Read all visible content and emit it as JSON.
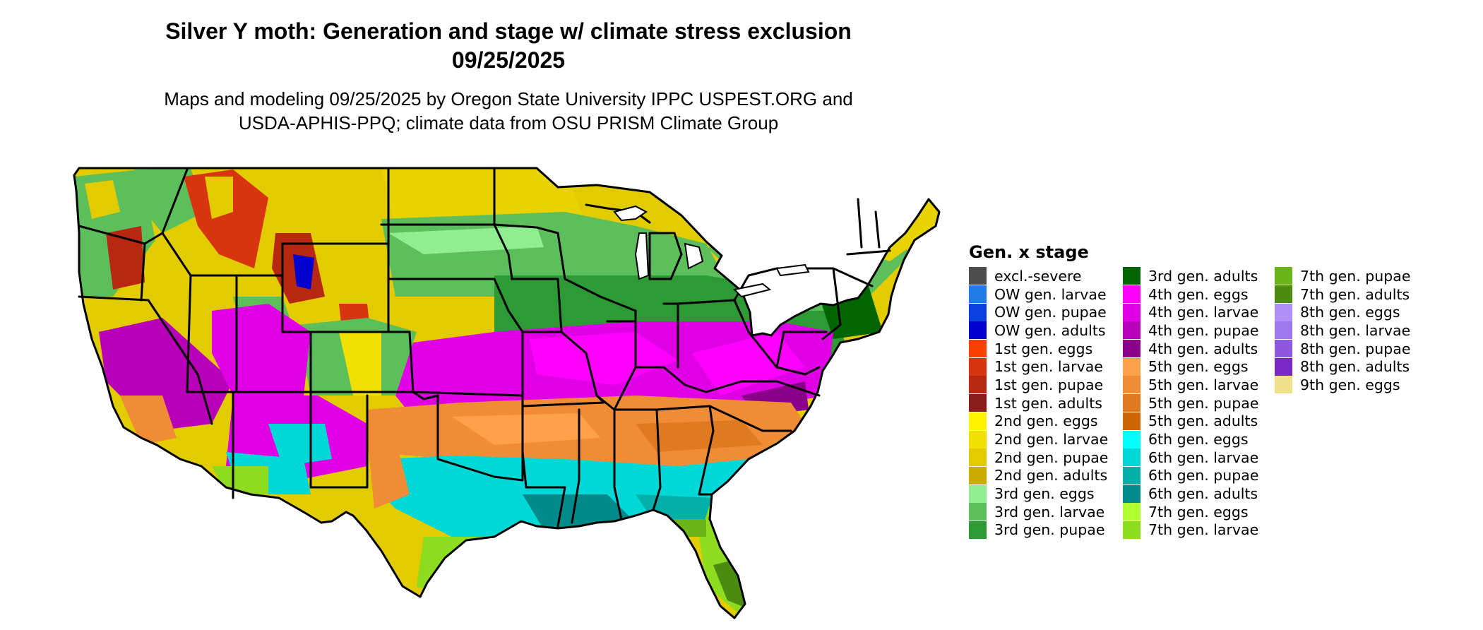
{
  "title": "Silver Y moth: Generation and stage w/ climate stress exclusion",
  "date": "09/25/2025",
  "subtitle_line1": "Maps and modeling 09/25/2025 by Oregon State University IPPC USPEST.ORG and",
  "subtitle_line2": "USDA-APHIS-PPQ; climate data from OSU PRISM Climate Group",
  "map": {
    "region": "Contiguous United States",
    "background_color": "#e8c400",
    "outline_color": "#000000"
  },
  "legend": {
    "title": "Gen. x stage",
    "columns": [
      [
        {
          "label": "excl.-severe",
          "color": "#4d4d4d"
        },
        {
          "label": "OW gen. larvae",
          "color": "#1e7be8"
        },
        {
          "label": "OW gen. pupae",
          "color": "#0a40e0"
        },
        {
          "label": "OW gen. adults",
          "color": "#0000d0"
        },
        {
          "label": "1st gen. eggs",
          "color": "#f84000"
        },
        {
          "label": "1st gen. larvae",
          "color": "#d83410"
        },
        {
          "label": "1st gen. pupae",
          "color": "#b82810"
        },
        {
          "label": "1st gen. adults",
          "color": "#8b1c1c"
        },
        {
          "label": "2nd gen. eggs",
          "color": "#fff200"
        },
        {
          "label": "2nd gen. larvae",
          "color": "#f2e000"
        },
        {
          "label": "2nd gen. pupae",
          "color": "#e2cc00"
        },
        {
          "label": "2nd gen. adults",
          "color": "#ccac00"
        },
        {
          "label": "3rd gen. eggs",
          "color": "#90ee90"
        },
        {
          "label": "3rd gen. larvae",
          "color": "#5cbf5c"
        },
        {
          "label": "3rd gen. pupae",
          "color": "#2e9a35"
        }
      ],
      [
        {
          "label": "3rd gen. adults",
          "color": "#006400"
        },
        {
          "label": "4th gen. eggs",
          "color": "#ff00ff"
        },
        {
          "label": "4th gen. larvae",
          "color": "#e000e6"
        },
        {
          "label": "4th gen. pupae",
          "color": "#b800b8"
        },
        {
          "label": "4th gen. adults",
          "color": "#8b008b"
        },
        {
          "label": "5th gen. eggs",
          "color": "#ffa04a"
        },
        {
          "label": "5th gen. larvae",
          "color": "#f08c35"
        },
        {
          "label": "5th gen. pupae",
          "color": "#e07a20"
        },
        {
          "label": "5th gen. adults",
          "color": "#cc6600"
        },
        {
          "label": "6th gen. eggs",
          "color": "#00ffff"
        },
        {
          "label": "6th gen. larvae",
          "color": "#00d8d8"
        },
        {
          "label": "6th gen. pupae",
          "color": "#00b0a8"
        },
        {
          "label": "6th gen. adults",
          "color": "#008b8b"
        },
        {
          "label": "7th gen. eggs",
          "color": "#b0ff30"
        },
        {
          "label": "7th gen. larvae",
          "color": "#8ddc20"
        }
      ],
      [
        {
          "label": "7th gen. pupae",
          "color": "#6bb41a"
        },
        {
          "label": "7th gen. adults",
          "color": "#4a8c10"
        },
        {
          "label": "8th gen. eggs",
          "color": "#b090f8"
        },
        {
          "label": "8th gen. larvae",
          "color": "#9f78f0"
        },
        {
          "label": "8th gen. pupae",
          "color": "#8f58e0"
        },
        {
          "label": "8th gen. adults",
          "color": "#7a28c8"
        },
        {
          "label": "9th gen. eggs",
          "color": "#f0e08c"
        }
      ]
    ]
  }
}
